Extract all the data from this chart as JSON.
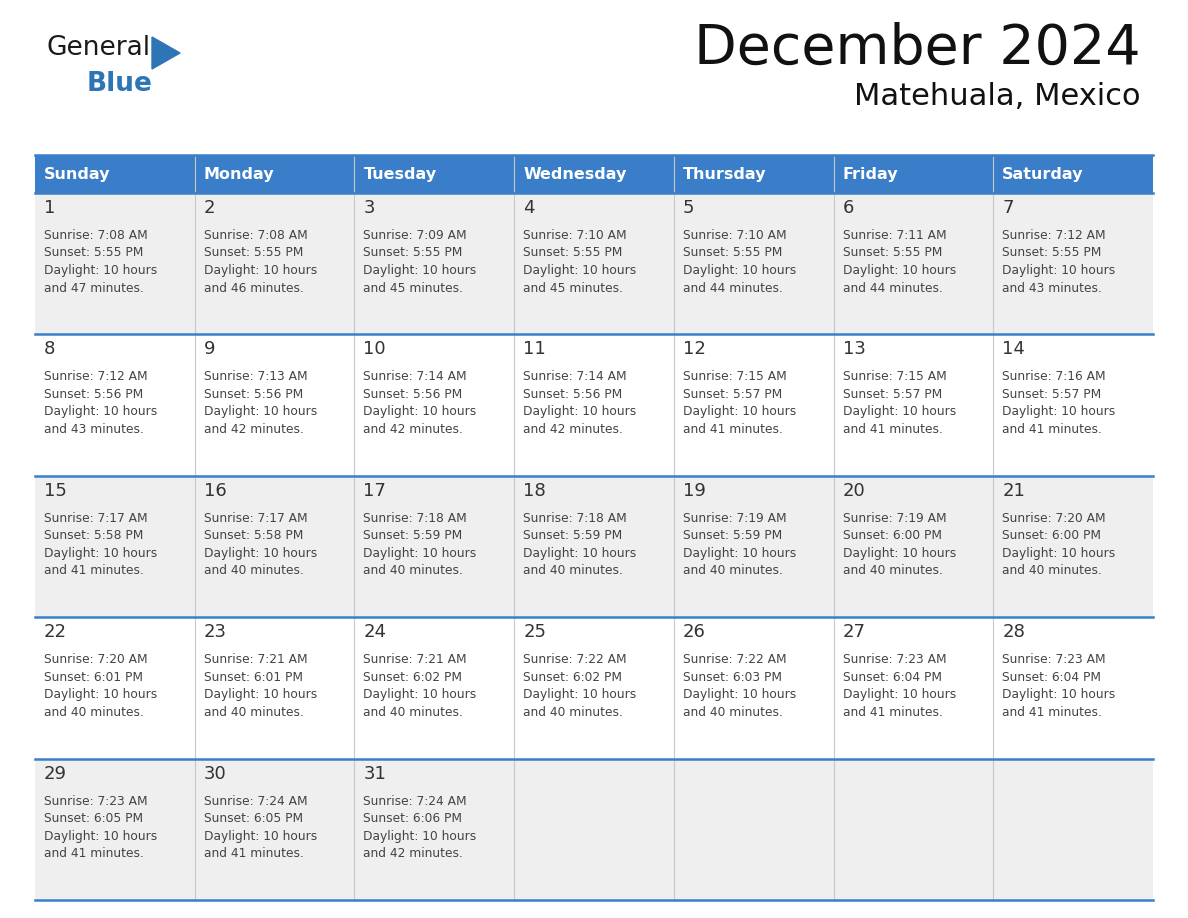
{
  "title": "December 2024",
  "subtitle": "Matehuala, Mexico",
  "header_color": "#3A7DC9",
  "header_text_color": "#FFFFFF",
  "cell_bg_odd": "#EFEFEF",
  "cell_bg_even": "#FFFFFF",
  "day_text_color": "#333333",
  "info_text_color": "#444444",
  "days_of_week": [
    "Sunday",
    "Monday",
    "Tuesday",
    "Wednesday",
    "Thursday",
    "Friday",
    "Saturday"
  ],
  "calendar_data": [
    [
      {
        "day": "1",
        "sunrise": "7:08 AM",
        "sunset": "5:55 PM",
        "daylight_line1": "Daylight: 10 hours",
        "daylight_line2": "and 47 minutes."
      },
      {
        "day": "2",
        "sunrise": "7:08 AM",
        "sunset": "5:55 PM",
        "daylight_line1": "Daylight: 10 hours",
        "daylight_line2": "and 46 minutes."
      },
      {
        "day": "3",
        "sunrise": "7:09 AM",
        "sunset": "5:55 PM",
        "daylight_line1": "Daylight: 10 hours",
        "daylight_line2": "and 45 minutes."
      },
      {
        "day": "4",
        "sunrise": "7:10 AM",
        "sunset": "5:55 PM",
        "daylight_line1": "Daylight: 10 hours",
        "daylight_line2": "and 45 minutes."
      },
      {
        "day": "5",
        "sunrise": "7:10 AM",
        "sunset": "5:55 PM",
        "daylight_line1": "Daylight: 10 hours",
        "daylight_line2": "and 44 minutes."
      },
      {
        "day": "6",
        "sunrise": "7:11 AM",
        "sunset": "5:55 PM",
        "daylight_line1": "Daylight: 10 hours",
        "daylight_line2": "and 44 minutes."
      },
      {
        "day": "7",
        "sunrise": "7:12 AM",
        "sunset": "5:55 PM",
        "daylight_line1": "Daylight: 10 hours",
        "daylight_line2": "and 43 minutes."
      }
    ],
    [
      {
        "day": "8",
        "sunrise": "7:12 AM",
        "sunset": "5:56 PM",
        "daylight_line1": "Daylight: 10 hours",
        "daylight_line2": "and 43 minutes."
      },
      {
        "day": "9",
        "sunrise": "7:13 AM",
        "sunset": "5:56 PM",
        "daylight_line1": "Daylight: 10 hours",
        "daylight_line2": "and 42 minutes."
      },
      {
        "day": "10",
        "sunrise": "7:14 AM",
        "sunset": "5:56 PM",
        "daylight_line1": "Daylight: 10 hours",
        "daylight_line2": "and 42 minutes."
      },
      {
        "day": "11",
        "sunrise": "7:14 AM",
        "sunset": "5:56 PM",
        "daylight_line1": "Daylight: 10 hours",
        "daylight_line2": "and 42 minutes."
      },
      {
        "day": "12",
        "sunrise": "7:15 AM",
        "sunset": "5:57 PM",
        "daylight_line1": "Daylight: 10 hours",
        "daylight_line2": "and 41 minutes."
      },
      {
        "day": "13",
        "sunrise": "7:15 AM",
        "sunset": "5:57 PM",
        "daylight_line1": "Daylight: 10 hours",
        "daylight_line2": "and 41 minutes."
      },
      {
        "day": "14",
        "sunrise": "7:16 AM",
        "sunset": "5:57 PM",
        "daylight_line1": "Daylight: 10 hours",
        "daylight_line2": "and 41 minutes."
      }
    ],
    [
      {
        "day": "15",
        "sunrise": "7:17 AM",
        "sunset": "5:58 PM",
        "daylight_line1": "Daylight: 10 hours",
        "daylight_line2": "and 41 minutes."
      },
      {
        "day": "16",
        "sunrise": "7:17 AM",
        "sunset": "5:58 PM",
        "daylight_line1": "Daylight: 10 hours",
        "daylight_line2": "and 40 minutes."
      },
      {
        "day": "17",
        "sunrise": "7:18 AM",
        "sunset": "5:59 PM",
        "daylight_line1": "Daylight: 10 hours",
        "daylight_line2": "and 40 minutes."
      },
      {
        "day": "18",
        "sunrise": "7:18 AM",
        "sunset": "5:59 PM",
        "daylight_line1": "Daylight: 10 hours",
        "daylight_line2": "and 40 minutes."
      },
      {
        "day": "19",
        "sunrise": "7:19 AM",
        "sunset": "5:59 PM",
        "daylight_line1": "Daylight: 10 hours",
        "daylight_line2": "and 40 minutes."
      },
      {
        "day": "20",
        "sunrise": "7:19 AM",
        "sunset": "6:00 PM",
        "daylight_line1": "Daylight: 10 hours",
        "daylight_line2": "and 40 minutes."
      },
      {
        "day": "21",
        "sunrise": "7:20 AM",
        "sunset": "6:00 PM",
        "daylight_line1": "Daylight: 10 hours",
        "daylight_line2": "and 40 minutes."
      }
    ],
    [
      {
        "day": "22",
        "sunrise": "7:20 AM",
        "sunset": "6:01 PM",
        "daylight_line1": "Daylight: 10 hours",
        "daylight_line2": "and 40 minutes."
      },
      {
        "day": "23",
        "sunrise": "7:21 AM",
        "sunset": "6:01 PM",
        "daylight_line1": "Daylight: 10 hours",
        "daylight_line2": "and 40 minutes."
      },
      {
        "day": "24",
        "sunrise": "7:21 AM",
        "sunset": "6:02 PM",
        "daylight_line1": "Daylight: 10 hours",
        "daylight_line2": "and 40 minutes."
      },
      {
        "day": "25",
        "sunrise": "7:22 AM",
        "sunset": "6:02 PM",
        "daylight_line1": "Daylight: 10 hours",
        "daylight_line2": "and 40 minutes."
      },
      {
        "day": "26",
        "sunrise": "7:22 AM",
        "sunset": "6:03 PM",
        "daylight_line1": "Daylight: 10 hours",
        "daylight_line2": "and 40 minutes."
      },
      {
        "day": "27",
        "sunrise": "7:23 AM",
        "sunset": "6:04 PM",
        "daylight_line1": "Daylight: 10 hours",
        "daylight_line2": "and 41 minutes."
      },
      {
        "day": "28",
        "sunrise": "7:23 AM",
        "sunset": "6:04 PM",
        "daylight_line1": "Daylight: 10 hours",
        "daylight_line2": "and 41 minutes."
      }
    ],
    [
      {
        "day": "29",
        "sunrise": "7:23 AM",
        "sunset": "6:05 PM",
        "daylight_line1": "Daylight: 10 hours",
        "daylight_line2": "and 41 minutes."
      },
      {
        "day": "30",
        "sunrise": "7:24 AM",
        "sunset": "6:05 PM",
        "daylight_line1": "Daylight: 10 hours",
        "daylight_line2": "and 41 minutes."
      },
      {
        "day": "31",
        "sunrise": "7:24 AM",
        "sunset": "6:06 PM",
        "daylight_line1": "Daylight: 10 hours",
        "daylight_line2": "and 42 minutes."
      },
      null,
      null,
      null,
      null
    ]
  ],
  "logo_color_general": "#1a1a1a",
  "logo_color_blue": "#2E75B6",
  "logo_triangle_color": "#2E75B6",
  "fig_width": 11.88,
  "fig_height": 9.18,
  "fig_dpi": 100
}
